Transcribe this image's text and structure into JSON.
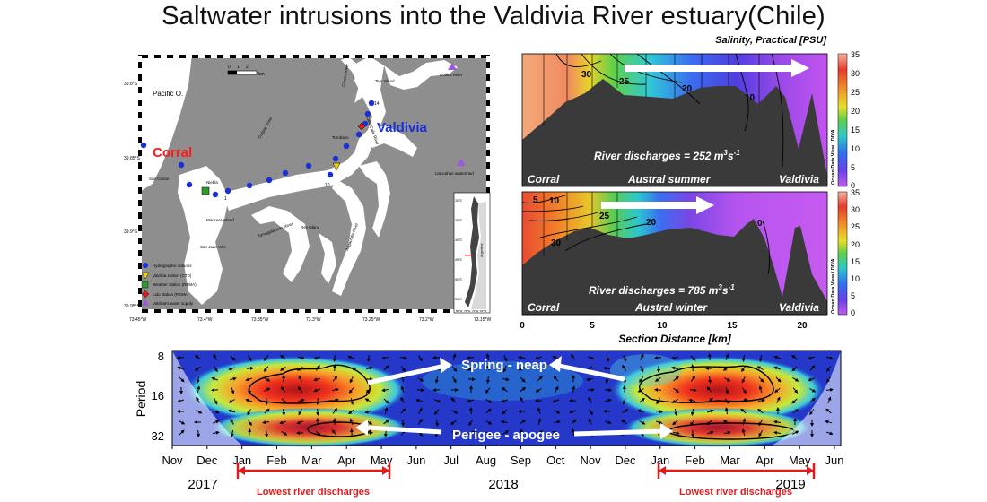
{
  "title": "Saltwater intrusions into the Valdivia River estuary(Chile)",
  "map": {
    "scale_ticks": [
      "0",
      "1",
      "2",
      "3"
    ],
    "scale_unit": "km",
    "lat_ticks": [
      "39.8°S",
      "39.85°S",
      "39.9°S",
      "39.95°S"
    ],
    "lon_ticks": [
      "73.45°W",
      "73.4°W",
      "73.35°W",
      "73.3°W",
      "73.25°W",
      "73.2°W",
      "73.15°W"
    ],
    "labels": {
      "pacific": "Pacific O.",
      "corral": "Corral",
      "valdivia": "Valdivia",
      "teja": "Teja Island",
      "torobayo": "Torobayo",
      "cruces": "Cruces River",
      "calle_calle": "Calle-Calle River",
      "collico": "Collico River",
      "llancahue": "Llancahue watershed",
      "mancera": "Mancera Island",
      "san_carlos": "San Carlos",
      "niebla": "Niebla",
      "tornagaleones": "Tornagaleones River",
      "rey": "Rey Island",
      "san_juan": "San Juan Inlet",
      "angachilla": "Angachilla River",
      "cutipay": "Cutipay River",
      "station_numbers": [
        "1",
        "10",
        "14"
      ]
    },
    "legend": [
      {
        "symbol": "circle",
        "color": "#1a2fd6",
        "label": "Hydrographic stations"
      },
      {
        "symbol": "triangle-down",
        "color": "#e8d21a",
        "label": "Valdivia station (CTD)"
      },
      {
        "symbol": "square",
        "color": "#2e9a2e",
        "label": "Weather station (REMA)"
      },
      {
        "symbol": "diamond",
        "color": "#d42020",
        "label": "Lido station (REMA)"
      },
      {
        "symbol": "triangle-up",
        "color": "#9b59e0",
        "label": "Valdivia's water supply"
      }
    ],
    "inset": {
      "lat_ticks": [
        "30°S",
        "35°S",
        "40°S",
        "45°S",
        "50°S",
        "55°S"
      ],
      "country": "Argentina",
      "lon_ticks": [
        "80°W",
        "75°W",
        "70°W",
        "65°W"
      ]
    }
  },
  "sections": {
    "title": "Salinity, Practical [PSU]",
    "colorbar_ticks": [
      "35",
      "30",
      "25",
      "20",
      "15",
      "10",
      "5",
      "0"
    ],
    "colorbar_label": "Ocean Data View / DIVA",
    "x_ticks": [
      "0",
      "5",
      "10",
      "15",
      "20"
    ],
    "x_label": "Section Distance [km]",
    "summer": {
      "discharge_prefix": "River discharges = 252 m",
      "season": "Austral summer",
      "left": "Corral",
      "right": "Valdivia",
      "contours": [
        "30",
        "25",
        "20",
        "10"
      ]
    },
    "winter": {
      "discharge_prefix": "River discharges = 785 m",
      "season": "Austral winter",
      "left": "Corral",
      "right": "Valdivia",
      "contours": [
        "5",
        "10",
        "25",
        "20",
        "30",
        "0"
      ]
    },
    "unit_exp": "3",
    "unit_rest": "s",
    "unit_exp2": "-1"
  },
  "wavelet": {
    "y_label": "Period",
    "y_ticks": [
      "8",
      "16",
      "32"
    ],
    "x_months": [
      "Nov",
      "Dec",
      "Jan",
      "Feb",
      "Mar",
      "Apr",
      "May",
      "Jun",
      "Jul",
      "Aug",
      "Sep",
      "Oct",
      "Nov",
      "Dec",
      "Jan",
      "Feb",
      "Mar",
      "Apr",
      "May",
      "Jun"
    ],
    "years": [
      "2017",
      "2018",
      "2019"
    ],
    "annot_spring": "Spring - neap",
    "annot_perigee": "Perigee - apogee",
    "lowest_1": "Lowest river discharges",
    "lowest_2": "Lowest river discharges"
  },
  "colors": {
    "map_bg": "#8e8e8e",
    "land_white": "#ffffff",
    "corral_red": "#ff1a1a",
    "valdivia_blue": "#1a2fd6",
    "annotation_red": "#e01b1b",
    "terrain": "#3a3a3a"
  }
}
